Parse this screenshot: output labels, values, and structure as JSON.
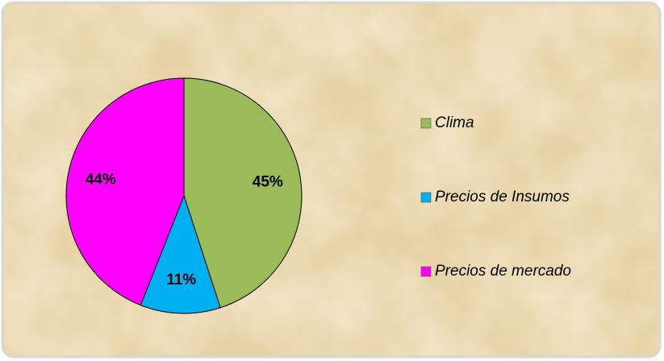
{
  "chart_data": {
    "type": "pie",
    "categories": [
      "Clima",
      "Precios de Insumos",
      "Precios de mercado"
    ],
    "values": [
      45,
      11,
      44
    ],
    "value_labels": [
      "45%",
      "11%",
      "44%"
    ],
    "colors": [
      "#9bbb59",
      "#00b0f0",
      "#ff00ff"
    ],
    "legend": "right"
  }
}
